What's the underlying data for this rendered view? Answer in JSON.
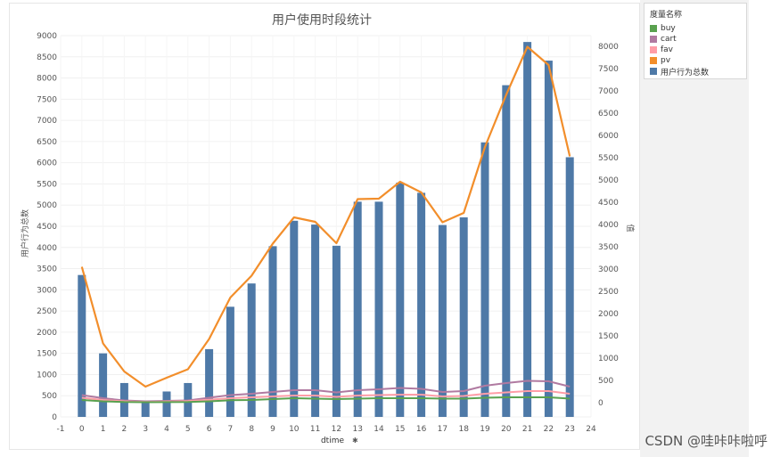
{
  "chart_data": {
    "type": "bar",
    "title": "用户使用时段统计",
    "xlabel": "dtime",
    "xlabel_icon": "pin-icon",
    "ylabel_left": "用户行为总数",
    "ylabel_right": "值",
    "x_ticks": [
      "-1",
      "0",
      "1",
      "2",
      "3",
      "4",
      "5",
      "6",
      "7",
      "8",
      "9",
      "10",
      "11",
      "12",
      "13",
      "14",
      "15",
      "16",
      "17",
      "18",
      "19",
      "20",
      "21",
      "22",
      "23",
      "24"
    ],
    "y_left_ticks": [
      "0",
      "500",
      "1000",
      "1500",
      "2000",
      "2500",
      "3000",
      "3500",
      "4000",
      "4500",
      "5000",
      "5500",
      "6000",
      "6500",
      "7000",
      "7500",
      "8000",
      "8500",
      "9000"
    ],
    "y_right_ticks": [
      "0",
      "500",
      "1000",
      "1500",
      "2000",
      "2500",
      "3000",
      "3500",
      "4000",
      "4500",
      "5000",
      "5500",
      "6000",
      "6500",
      "7000",
      "7500",
      "8000"
    ],
    "ylim_left": [
      0,
      9000
    ],
    "ylim_right": [
      0,
      8000
    ],
    "xlim": [
      -1,
      24
    ],
    "categories": [
      0,
      1,
      2,
      3,
      4,
      5,
      6,
      7,
      8,
      9,
      10,
      11,
      12,
      13,
      14,
      15,
      16,
      17,
      18,
      19,
      20,
      21,
      22,
      23
    ],
    "bar_series": {
      "name": "用户行为总数",
      "color": "#4e79a7",
      "values": [
        3350,
        1500,
        800,
        380,
        600,
        800,
        1600,
        2600,
        3150,
        4030,
        4630,
        4540,
        4040,
        5080,
        5080,
        5530,
        5290,
        4530,
        4710,
        6480,
        7830,
        8850,
        8410,
        6130
      ]
    },
    "series": [
      {
        "name": "pv",
        "color": "#f28e2b",
        "values": [
          3050,
          1330,
          700,
          360,
          560,
          750,
          1430,
          2360,
          2850,
          3570,
          4160,
          4060,
          3580,
          4570,
          4580,
          4960,
          4720,
          4050,
          4260,
          5740,
          6910,
          7990,
          7580,
          5530
        ]
      },
      {
        "name": "cart",
        "color": "#b07aa1",
        "values": [
          170,
          100,
          50,
          30,
          40,
          50,
          110,
          170,
          200,
          240,
          280,
          280,
          230,
          280,
          300,
          330,
          310,
          240,
          260,
          380,
          440,
          490,
          480,
          360
        ]
      },
      {
        "name": "fav",
        "color": "#ff9da7",
        "values": [
          110,
          60,
          30,
          15,
          25,
          35,
          65,
          100,
          120,
          140,
          160,
          160,
          130,
          160,
          170,
          180,
          180,
          140,
          150,
          200,
          230,
          260,
          260,
          200
        ]
      },
      {
        "name": "buy",
        "color": "#59a14f",
        "values": [
          60,
          30,
          15,
          10,
          12,
          15,
          30,
          55,
          60,
          80,
          100,
          90,
          80,
          90,
          100,
          100,
          100,
          90,
          90,
          110,
          120,
          120,
          120,
          90
        ]
      }
    ],
    "legend_placement": "right",
    "grid": true
  },
  "legend": {
    "title": "度量名称",
    "items": [
      {
        "label": "buy",
        "color": "#59a14f"
      },
      {
        "label": "cart",
        "color": "#b07aa1"
      },
      {
        "label": "fav",
        "color": "#ff9da7"
      },
      {
        "label": "pv",
        "color": "#f28e2b"
      },
      {
        "label": "用户行为总数",
        "color": "#4e79a7"
      }
    ]
  },
  "watermark": "CSDN @哇咔咔啦呼"
}
